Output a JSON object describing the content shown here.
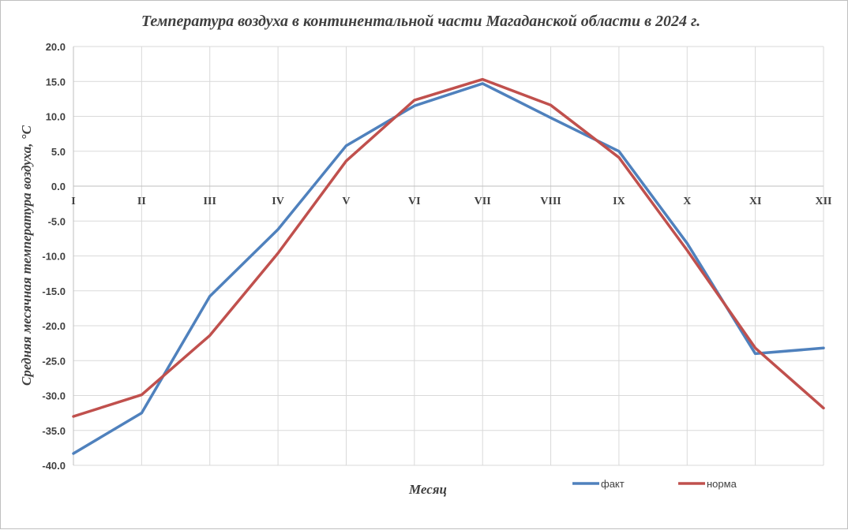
{
  "chart_data": {
    "type": "line",
    "title": "Температура воздуха в континентальной части Магаданской области в 2024 г.",
    "xlabel": "Месяц",
    "ylabel": "Средняя месячная температура воздуха, °С",
    "categories": [
      "I",
      "II",
      "III",
      "IV",
      "V",
      "VI",
      "VII",
      "VIII",
      "IX",
      "X",
      "XI",
      "XII"
    ],
    "ylim": [
      -40,
      20
    ],
    "ytick_step": 5,
    "ytick_labels": [
      "20.0",
      "15.0",
      "10.0",
      "5.0",
      "0.0",
      "-5.0",
      "-10.0",
      "-15.0",
      "-20.0",
      "-25.0",
      "-30.0",
      "-35.0",
      "-40.0"
    ],
    "grid": true,
    "legend_position": "bottom-right",
    "series": [
      {
        "name": "факт",
        "color": "#4f81bd",
        "values": [
          -38.3,
          -32.5,
          -15.8,
          -6.2,
          5.8,
          11.5,
          14.7,
          9.8,
          5.0,
          -8.2,
          -24.0,
          -23.2
        ]
      },
      {
        "name": "норма",
        "color": "#c0504d",
        "values": [
          -33.0,
          -29.9,
          -21.4,
          -9.6,
          3.6,
          12.3,
          15.3,
          11.6,
          4.1,
          -9.2,
          -23.2,
          -31.8
        ]
      }
    ]
  }
}
